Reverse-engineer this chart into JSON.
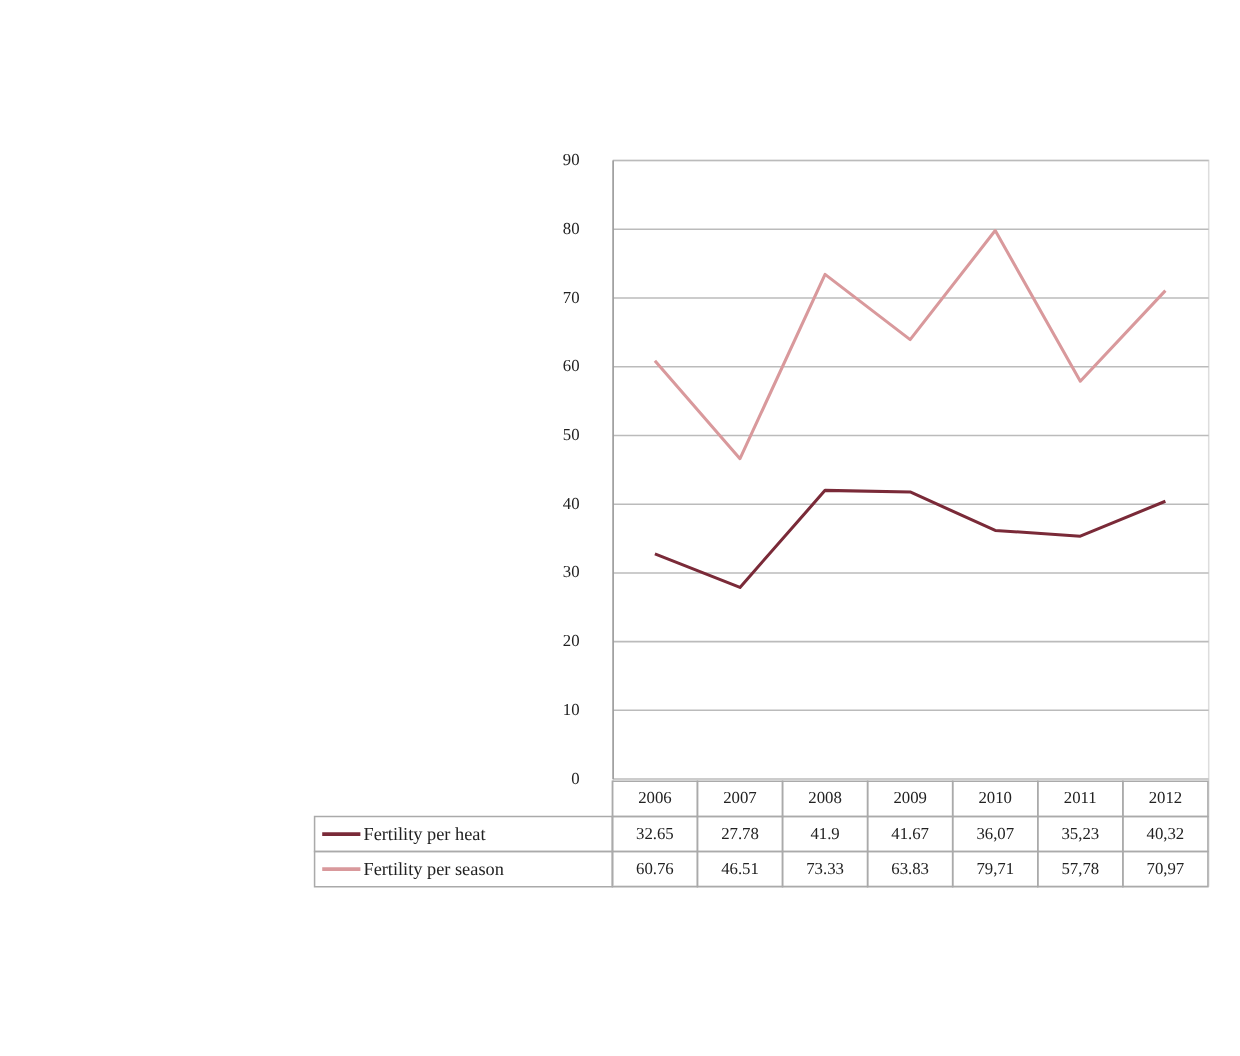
{
  "chart_data": {
    "type": "line",
    "categories": [
      "2006",
      "2007",
      "2008",
      "2009",
      "2010",
      "2011",
      "2012"
    ],
    "series": [
      {
        "name": "Fertility per heat",
        "color": "#7a2a38",
        "values": [
          32.65,
          27.78,
          41.9,
          41.67,
          36.07,
          35.23,
          40.32
        ],
        "value_labels": [
          "32.65",
          "27.78",
          "41.9",
          "41.67",
          "36,07",
          "35,23",
          "40,32"
        ]
      },
      {
        "name": "Fertility per season",
        "color": "#d9999c",
        "values": [
          60.76,
          46.51,
          73.33,
          63.83,
          79.71,
          57.78,
          70.97
        ],
        "value_labels": [
          "60.76",
          "46.51",
          "73.33",
          "63.83",
          "79,71",
          "57,78",
          "70,97"
        ]
      }
    ],
    "ylim": [
      0,
      90
    ],
    "yticks": [
      0,
      10,
      20,
      30,
      40,
      50,
      60,
      70,
      80,
      90
    ],
    "grid": "y",
    "legend": "bottom",
    "marker": "none",
    "line_style": "solid"
  }
}
